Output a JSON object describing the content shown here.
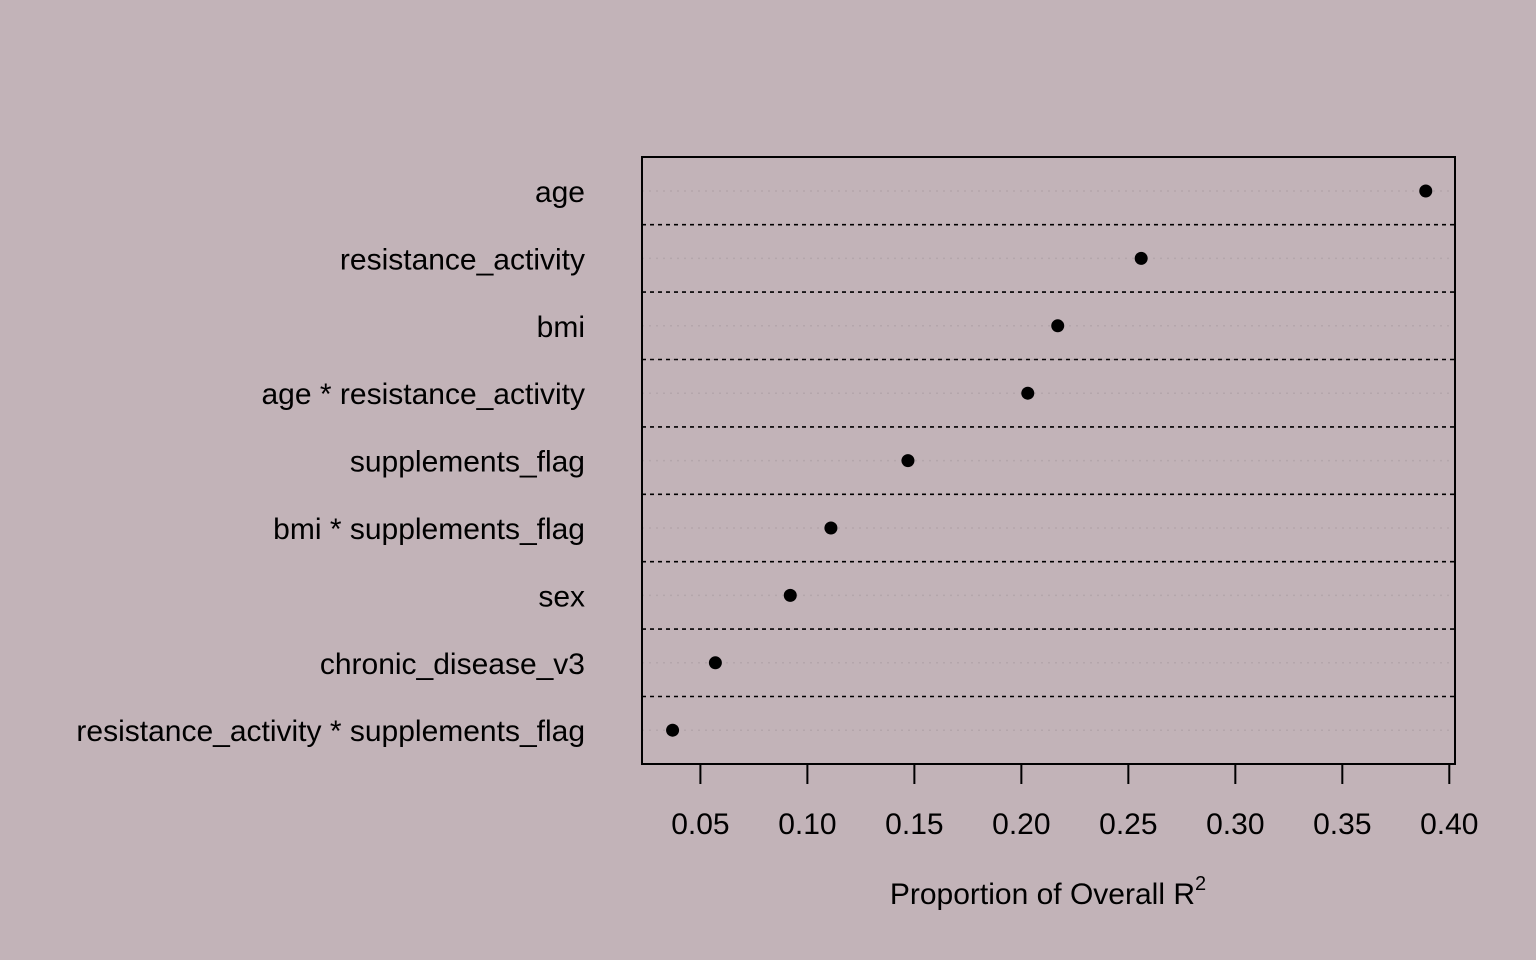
{
  "chart_data": {
    "type": "scatter",
    "subtype": "dotchart",
    "title": "",
    "xlabel": "Proportion of Overall R",
    "xlabel_superscript": "2",
    "ylabel": "",
    "xlim": [
      0.025,
      0.4
    ],
    "x_ticks": [
      0.05,
      0.1,
      0.15,
      0.2,
      0.25,
      0.3,
      0.35,
      0.4
    ],
    "x_tick_labels": [
      "0.05",
      "0.10",
      "0.15",
      "0.20",
      "0.25",
      "0.30",
      "0.35",
      "0.40"
    ],
    "categories": [
      "age",
      "resistance_activity",
      "bmi",
      "age * resistance_activity",
      "supplements_flag",
      "bmi * supplements_flag",
      "sex",
      "chronic_disease_v3",
      "resistance_activity * supplements_flag"
    ],
    "values": [
      0.389,
      0.256,
      0.217,
      0.203,
      0.147,
      0.111,
      0.092,
      0.057,
      0.037
    ],
    "grid": "dotted horizontal guides per row",
    "colors": {
      "background": "#c2b3b8",
      "points": "#000000"
    }
  }
}
